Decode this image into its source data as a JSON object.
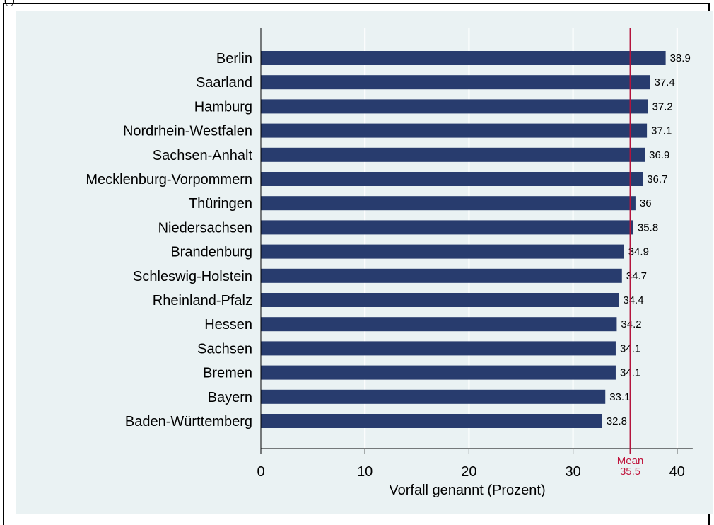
{
  "corner_text": "(          )",
  "colors": {
    "bar": "#283c6e",
    "mean_line": "#b4143c",
    "grid": "#ffffff",
    "background": "#eaf2f3"
  },
  "chart_data": {
    "type": "bar",
    "orientation": "horizontal",
    "categories": [
      "Berlin",
      "Saarland",
      "Hamburg",
      "Nordrhein-Westfalen",
      "Sachsen-Anhalt",
      "Mecklenburg-Vorpommern",
      "Thüringen",
      "Niedersachsen",
      "Brandenburg",
      "Schleswig-Holstein",
      "Rheinland-Pfalz",
      "Hessen",
      "Sachsen",
      "Bremen",
      "Bayern",
      "Baden-Württemberg"
    ],
    "values": [
      38.9,
      37.4,
      37.2,
      37.1,
      36.9,
      36.7,
      36,
      35.8,
      34.9,
      34.7,
      34.4,
      34.2,
      34.1,
      34.1,
      33.1,
      32.8
    ],
    "value_labels": [
      "38.9",
      "37.4",
      "37.2",
      "37.1",
      "36.9",
      "36.7",
      "36",
      "35.8",
      "34.9",
      "34.7",
      "34.4",
      "34.2",
      "34.1",
      "34.1",
      "33.1",
      "32.8"
    ],
    "xlabel": "Vorfall genannt (Prozent)",
    "xlim": [
      0,
      41.5
    ],
    "xticks": [
      0,
      10,
      20,
      30,
      40
    ],
    "xtick_labels": [
      "0",
      "10",
      "20",
      "30",
      "40"
    ],
    "grid": true,
    "reference_line": {
      "value": 35.5,
      "label": "Mean",
      "value_label": "35.5"
    }
  }
}
